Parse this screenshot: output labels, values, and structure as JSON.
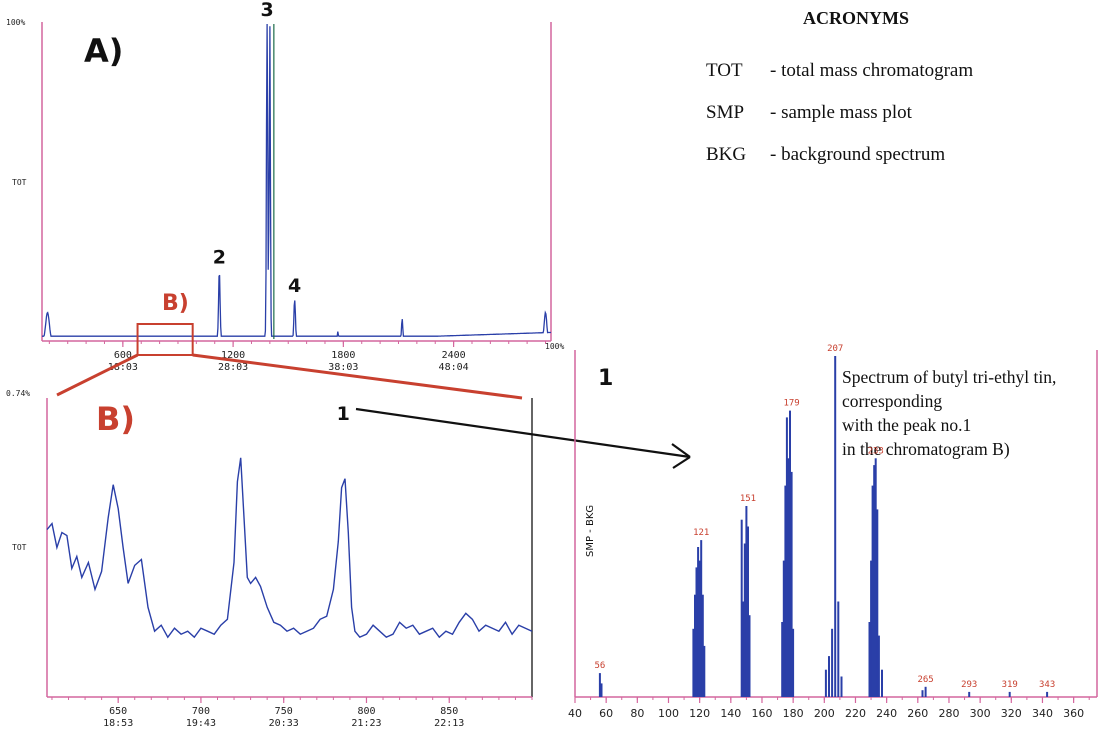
{
  "acronyms": {
    "title": "ACRONYMS",
    "items": [
      {
        "abbr": "TOT",
        "text": "- total mass chromatogram"
      },
      {
        "abbr": "SMP",
        "text": "- sample mass plot"
      },
      {
        "abbr": "BKG",
        "text": "- background spectrum"
      }
    ]
  },
  "annotation_lines": [
    "Spectrum of butyl tri-ethyl tin,",
    "corresponding",
    "with the peak no.1",
    "in the chromatogram B)"
  ],
  "panel_labels": {
    "a": "A)",
    "b": "B)",
    "b_box": "B)",
    "spectrum_peak": "1"
  },
  "colors": {
    "trace": "#2a3fa8",
    "axis": "#d4669e",
    "label_red": "#c8402f",
    "tick_label": "#222222"
  },
  "chart_data": [
    {
      "id": "A",
      "type": "line",
      "ylabel": "TOT",
      "ytop_label": "100%",
      "xlim": [
        160,
        2930
      ],
      "ylim": [
        0,
        100
      ],
      "x_ticks": [
        {
          "v": 600,
          "label": "600",
          "sub": "18:03"
        },
        {
          "v": 1200,
          "label": "1200",
          "sub": "28:03"
        },
        {
          "v": 1800,
          "label": "1800",
          "sub": "38:03"
        },
        {
          "v": 2400,
          "label": "2400",
          "sub": "48:04"
        }
      ],
      "peaks": [
        {
          "x": 190,
          "y": 9,
          "w": 14
        },
        {
          "x": 1125,
          "y": 22,
          "w": 6,
          "label": "2"
        },
        {
          "x": 1385,
          "y": 100,
          "w": 5,
          "label": "3"
        },
        {
          "x": 1400,
          "y": 100,
          "w": 4
        },
        {
          "x": 1395,
          "y": 36,
          "w": 5
        },
        {
          "x": 1535,
          "y": 13,
          "w": 6,
          "label": "4"
        },
        {
          "x": 1770,
          "y": 3,
          "w": 4
        },
        {
          "x": 2120,
          "y": 7,
          "w": 5
        },
        {
          "x": 2900,
          "y": 9,
          "w": 10
        }
      ],
      "baseline": 1.5,
      "zoom_range": [
        680,
        980
      ]
    },
    {
      "id": "B",
      "type": "line",
      "ylabel": "TOT",
      "ytop_label": "0.74%",
      "xlim": [
        607,
        900
      ],
      "ylim": [
        0,
        100
      ],
      "x_ticks": [
        {
          "v": 650,
          "label": "650",
          "sub": "18:53"
        },
        {
          "v": 700,
          "label": "700",
          "sub": "19:43"
        },
        {
          "v": 750,
          "label": "750",
          "sub": "20:33"
        },
        {
          "v": 800,
          "label": "800",
          "sub": "21:23"
        },
        {
          "v": 850,
          "label": "850",
          "sub": "22:13"
        }
      ],
      "x": [
        607,
        610,
        613,
        616,
        619,
        622,
        625,
        628,
        632,
        636,
        640,
        644,
        647,
        650,
        653,
        656,
        660,
        664,
        668,
        672,
        676,
        680,
        684,
        688,
        692,
        696,
        700,
        704,
        708,
        712,
        716,
        720,
        722,
        724,
        726,
        728,
        730,
        733,
        736,
        740,
        744,
        748,
        752,
        756,
        760,
        764,
        768,
        772,
        776,
        780,
        783,
        785,
        787,
        789,
        791,
        793,
        796,
        800,
        804,
        808,
        812,
        816,
        820,
        824,
        828,
        832,
        836,
        840,
        844,
        848,
        852,
        856,
        860,
        864,
        868,
        872,
        876,
        880,
        884,
        888,
        892,
        896,
        900
      ],
      "y": [
        56,
        58,
        50,
        55,
        54,
        43,
        47,
        40,
        45,
        36,
        42,
        60,
        71,
        63,
        50,
        38,
        44,
        46,
        30,
        22,
        24,
        20,
        23,
        21,
        22,
        20,
        23,
        22,
        21,
        24,
        26,
        45,
        72,
        80,
        60,
        40,
        38,
        40,
        37,
        30,
        25,
        24,
        22,
        23,
        21,
        22,
        23,
        26,
        27,
        36,
        52,
        70,
        73,
        55,
        30,
        22,
        20,
        21,
        24,
        22,
        20,
        21,
        25,
        23,
        24,
        21,
        22,
        23,
        20,
        22,
        21,
        25,
        28,
        26,
        22,
        24,
        23,
        22,
        25,
        21,
        24,
        23,
        22
      ],
      "peak_label": {
        "x": 786,
        "text": "1"
      }
    },
    {
      "id": "spectrum",
      "type": "bar",
      "ylabel": "SMP - BKG",
      "ytop_label": "100%",
      "xlim": [
        40,
        375
      ],
      "ylim": [
        0,
        100
      ],
      "x_ticks": [
        40,
        60,
        80,
        100,
        120,
        140,
        160,
        180,
        200,
        220,
        240,
        260,
        280,
        300,
        320,
        340,
        360
      ],
      "bars": [
        [
          56,
          7
        ],
        [
          57,
          4
        ],
        [
          116,
          20
        ],
        [
          117,
          30
        ],
        [
          118,
          38
        ],
        [
          119,
          44
        ],
        [
          120,
          40
        ],
        [
          121,
          46
        ],
        [
          122,
          30
        ],
        [
          123,
          15
        ],
        [
          147,
          52
        ],
        [
          148,
          28
        ],
        [
          149,
          45
        ],
        [
          150,
          56
        ],
        [
          151,
          50
        ],
        [
          152,
          24
        ],
        [
          173,
          22
        ],
        [
          174,
          40
        ],
        [
          175,
          62
        ],
        [
          176,
          82
        ],
        [
          177,
          70
        ],
        [
          178,
          84
        ],
        [
          179,
          66
        ],
        [
          180,
          20
        ],
        [
          201,
          8
        ],
        [
          203,
          12
        ],
        [
          205,
          20
        ],
        [
          207,
          100
        ],
        [
          209,
          28
        ],
        [
          211,
          6
        ],
        [
          229,
          22
        ],
        [
          230,
          40
        ],
        [
          231,
          62
        ],
        [
          232,
          68
        ],
        [
          233,
          70
        ],
        [
          234,
          55
        ],
        [
          235,
          18
        ],
        [
          237,
          8
        ],
        [
          265,
          3
        ],
        [
          263,
          2
        ],
        [
          293,
          1.5
        ],
        [
          319,
          1.5
        ],
        [
          343,
          1.5
        ]
      ],
      "labels": [
        {
          "x": 56,
          "y": 7,
          "text": "56"
        },
        {
          "x": 121,
          "y": 46,
          "text": "121"
        },
        {
          "x": 151,
          "y": 56,
          "text": "151"
        },
        {
          "x": 179,
          "y": 84,
          "text": "179"
        },
        {
          "x": 207,
          "y": 100,
          "text": "207"
        },
        {
          "x": 233,
          "y": 70,
          "text": "233"
        },
        {
          "x": 265,
          "y": 3,
          "text": "265"
        },
        {
          "x": 293,
          "y": 1.5,
          "text": "293"
        },
        {
          "x": 319,
          "y": 1.5,
          "text": "319"
        },
        {
          "x": 343,
          "y": 1.5,
          "text": "343"
        }
      ]
    }
  ]
}
